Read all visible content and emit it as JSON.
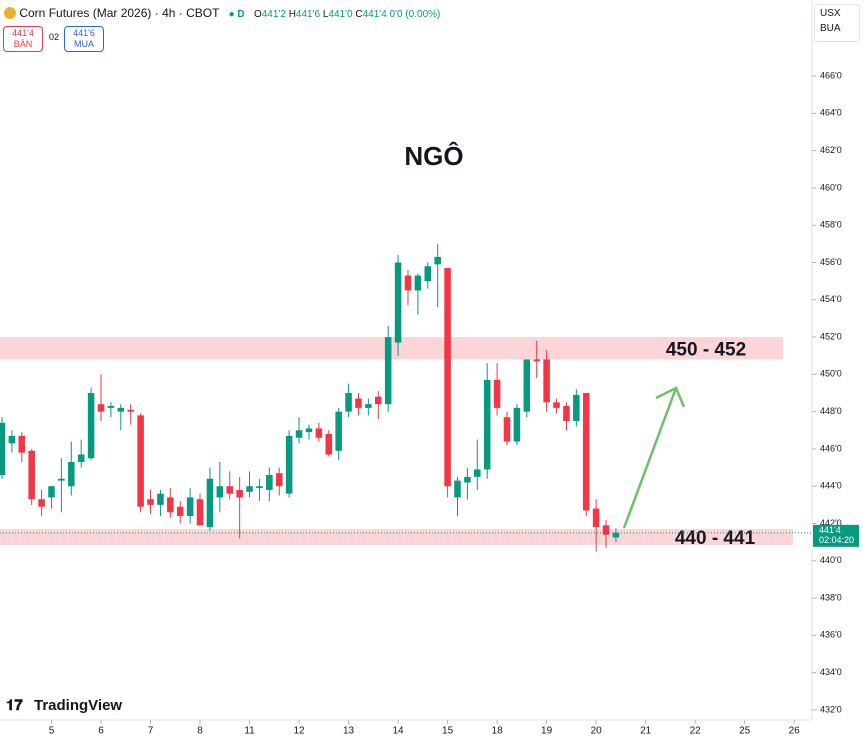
{
  "header": {
    "symbol": "Corn Futures (Mar 2026)",
    "interval": "4h",
    "exchange": "CBOT",
    "status": "D",
    "ohlc_labels": [
      "O",
      "H",
      "L",
      "C"
    ],
    "ohlc": [
      "441'2",
      "441'6",
      "441'0",
      "441'4"
    ],
    "change": "0'0 (0.00%)",
    "sell_price": "441'4",
    "sell_label": "BÁN",
    "spread": "02",
    "buy_price": "441'6",
    "buy_label": "MUA",
    "currency": "USX",
    "unit": "BUA",
    "logo": "TradingView"
  },
  "chart_data": {
    "type": "candlestick",
    "title": "NGÔ",
    "up_color": "#089981",
    "down_color": "#f23645",
    "x": [
      0,
      1,
      2,
      3,
      4,
      5,
      6,
      7,
      8,
      9,
      10,
      11,
      12,
      13,
      14,
      15,
      16,
      17,
      18,
      19,
      20,
      21,
      22,
      23,
      24,
      25,
      26,
      27,
      28,
      29,
      30,
      31,
      32,
      33,
      34,
      35,
      36,
      37,
      38,
      39,
      40,
      41,
      42,
      43,
      44,
      45,
      46,
      47,
      48,
      49,
      50,
      51,
      52,
      53,
      54,
      55,
      56,
      57,
      58,
      59,
      60,
      61,
      62
    ],
    "open": [
      444.6,
      446.3,
      446.7,
      445.9,
      443.3,
      443.4,
      444.3,
      444.0,
      445.3,
      445.5,
      448.4,
      448.2,
      448.0,
      448.1,
      447.8,
      443.3,
      443.0,
      443.4,
      442.9,
      442.4,
      443.3,
      441.8,
      443.4,
      444.0,
      443.8,
      443.7,
      443.9,
      443.8,
      444.7,
      443.6,
      446.6,
      446.9,
      447.1,
      446.8,
      445.9,
      448.0,
      448.7,
      448.2,
      448.8,
      448.4,
      451.7,
      455.3,
      454.5,
      455.0,
      455.9,
      455.7,
      443.4,
      444.2,
      444.5,
      444.9,
      449.7,
      447.7,
      446.4,
      448.0,
      450.8,
      450.8,
      448.5,
      448.3,
      447.5,
      449.0,
      442.8,
      441.9,
      441.25
    ],
    "high": [
      447.7,
      447.0,
      446.9,
      446.0,
      443.8,
      444.0,
      445.5,
      446.4,
      446.5,
      449.3,
      450.0,
      448.5,
      448.4,
      448.4,
      447.9,
      443.8,
      443.8,
      443.9,
      443.2,
      443.9,
      443.6,
      445.0,
      445.3,
      444.8,
      444.5,
      444.8,
      444.4,
      445.0,
      445.0,
      447.0,
      447.7,
      447.3,
      447.4,
      447.0,
      448.2,
      449.5,
      449.0,
      448.7,
      449.1,
      452.6,
      456.4,
      455.6,
      455.4,
      456.0,
      457.0,
      455.7,
      444.5,
      445.0,
      446.5,
      450.6,
      450.6,
      448.0,
      448.4,
      450.8,
      451.8,
      451.3,
      448.7,
      448.5,
      449.2,
      449.0,
      443.3,
      442.2,
      441.75
    ],
    "low": [
      444.4,
      445.8,
      445.3,
      443.0,
      442.4,
      442.8,
      442.6,
      443.5,
      445.0,
      445.4,
      447.5,
      447.7,
      447.0,
      447.3,
      442.6,
      442.5,
      442.4,
      442.3,
      442.0,
      442.0,
      441.9,
      441.6,
      442.6,
      443.3,
      441.2,
      443.4,
      443.2,
      443.2,
      443.5,
      443.4,
      446.3,
      446.5,
      446.4,
      445.6,
      445.4,
      447.7,
      447.8,
      447.8,
      447.6,
      448.0,
      451.0,
      453.7,
      453.2,
      454.6,
      453.6,
      443.4,
      442.4,
      443.3,
      443.8,
      444.4,
      447.8,
      446.2,
      446.2,
      447.7,
      449.8,
      448.0,
      447.9,
      447.0,
      447.2,
      442.4,
      440.5,
      440.7,
      441.0
    ],
    "close": [
      447.4,
      446.7,
      445.8,
      443.3,
      442.9,
      444.0,
      444.4,
      445.3,
      445.7,
      449.0,
      448.0,
      448.3,
      448.2,
      448.0,
      442.9,
      443.0,
      443.6,
      442.6,
      442.4,
      443.4,
      441.9,
      444.4,
      444.0,
      443.6,
      443.4,
      444.0,
      444.0,
      444.6,
      444.0,
      446.7,
      447.0,
      447.1,
      446.6,
      445.7,
      448.0,
      449.0,
      448.2,
      448.4,
      448.4,
      452.0,
      456.0,
      454.5,
      455.3,
      455.8,
      456.3,
      444.0,
      444.3,
      444.5,
      444.9,
      449.7,
      448.2,
      446.4,
      448.2,
      450.8,
      450.7,
      448.5,
      448.2,
      447.5,
      448.9,
      442.7,
      441.8,
      441.4,
      441.5
    ],
    "zones": [
      {
        "label": "450 - 452",
        "low": 450.8,
        "high": 452.0,
        "color": "#fcd5d8"
      },
      {
        "label": "440 - 441",
        "low": 440.85,
        "high": 441.7,
        "color": "#fcd5d8"
      }
    ],
    "xlim": [
      -0.2,
      81.8
    ],
    "xticks": [
      {
        "value": 5,
        "label": "5"
      },
      {
        "value": 10,
        "label": "6"
      },
      {
        "value": 15,
        "label": "7"
      },
      {
        "value": 20,
        "label": "8"
      },
      {
        "value": 25,
        "label": "11"
      },
      {
        "value": 30,
        "label": "12"
      },
      {
        "value": 35,
        "label": "13"
      },
      {
        "value": 40,
        "label": "14"
      },
      {
        "value": 45,
        "label": "15"
      },
      {
        "value": 50,
        "label": "18"
      },
      {
        "value": 55,
        "label": "19"
      },
      {
        "value": 60,
        "label": "20"
      },
      {
        "value": 65,
        "label": "21"
      },
      {
        "value": 70,
        "label": "22"
      },
      {
        "value": 75,
        "label": "25"
      },
      {
        "value": 80,
        "label": "26"
      }
    ],
    "ylim": [
      431.46,
      470.08
    ],
    "yticks": [
      {
        "value": 432,
        "label": "432'0"
      },
      {
        "value": 434,
        "label": "434'0"
      },
      {
        "value": 436,
        "label": "436'0"
      },
      {
        "value": 438,
        "label": "438'0"
      },
      {
        "value": 440,
        "label": "440'0"
      },
      {
        "value": 442,
        "label": "442'0"
      },
      {
        "value": 444,
        "label": "444'0"
      },
      {
        "value": 446,
        "label": "446'0"
      },
      {
        "value": 448,
        "label": "448'0"
      },
      {
        "value": 450,
        "label": "450'0"
      },
      {
        "value": 452,
        "label": "452'0"
      },
      {
        "value": 454,
        "label": "454'0"
      },
      {
        "value": 456,
        "label": "456'0"
      },
      {
        "value": 458,
        "label": "458'0"
      },
      {
        "value": 460,
        "label": "460'0"
      },
      {
        "value": 462,
        "label": "462'0"
      },
      {
        "value": 464,
        "label": "464'0"
      },
      {
        "value": 466,
        "label": "466'0"
      }
    ],
    "last_price_label": "441'4",
    "countdown": "02:04:20"
  }
}
